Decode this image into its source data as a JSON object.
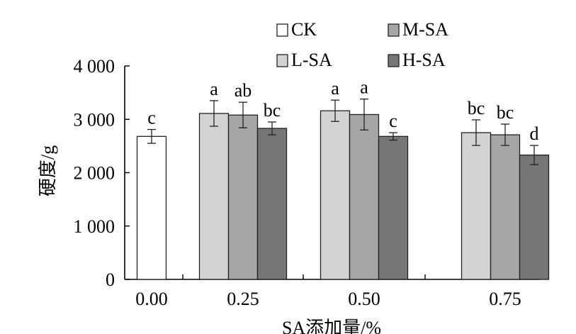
{
  "chart_data": {
    "type": "bar",
    "xlabel": "SA添加量/%",
    "ylabel": "硬度/g",
    "ylim": [
      0,
      4000
    ],
    "yticks": [
      {
        "value": 0,
        "label": "0"
      },
      {
        "value": 1000,
        "label": "1 000"
      },
      {
        "value": 2000,
        "label": "2 000"
      },
      {
        "value": 3000,
        "label": "3 000"
      },
      {
        "value": 4000,
        "label": "4 000"
      }
    ],
    "categories": [
      "0.00",
      "0.25",
      "0.50",
      "0.75"
    ],
    "legend_position": "top",
    "series": [
      {
        "name": "CK",
        "color": "#ffffff",
        "values": [
          2680,
          null,
          null,
          null
        ],
        "errors": [
          130,
          null,
          null,
          null
        ],
        "labels": [
          "c",
          null,
          null,
          null
        ]
      },
      {
        "name": "L-SA",
        "color": "#d3d3d3",
        "values": [
          null,
          3110,
          3160,
          2750
        ],
        "errors": [
          null,
          240,
          200,
          240
        ],
        "labels": [
          null,
          "a",
          "a",
          "bc"
        ]
      },
      {
        "name": "M-SA",
        "color": "#a6a6a6",
        "values": [
          null,
          3080,
          3090,
          2710
        ],
        "errors": [
          null,
          240,
          290,
          200
        ],
        "labels": [
          null,
          "ab",
          "a",
          "bc"
        ]
      },
      {
        "name": "H-SA",
        "color": "#767676",
        "values": [
          null,
          2830,
          2680,
          2330
        ],
        "errors": [
          null,
          120,
          70,
          180
        ],
        "labels": [
          null,
          "bc",
          "c",
          "d"
        ]
      }
    ]
  }
}
